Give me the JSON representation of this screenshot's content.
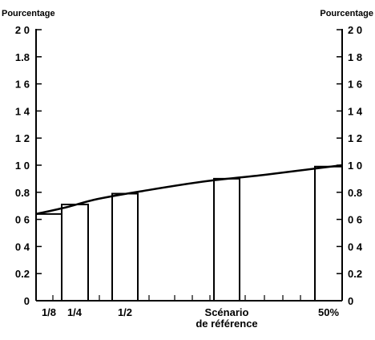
{
  "chart_data": {
    "type": "bar",
    "left_axis_title": "Pourcentage",
    "right_axis_title": "Pourcentage",
    "ylim": [
      0,
      2.0
    ],
    "y_ticks": [
      {
        "value": 0,
        "label": "0"
      },
      {
        "value": 0.2,
        "label": "0.2"
      },
      {
        "value": 0.4,
        "label": "0 4"
      },
      {
        "value": 0.6,
        "label": "0 6"
      },
      {
        "value": 0.8,
        "label": "0.8"
      },
      {
        "value": 1.0,
        "label": "1 0"
      },
      {
        "value": 1.2,
        "label": "1 2"
      },
      {
        "value": 1.4,
        "label": "1 4"
      },
      {
        "value": 1.6,
        "label": "1 6"
      },
      {
        "value": 1.8,
        "label": "1.8"
      },
      {
        "value": 2.0,
        "label": "2 0"
      }
    ],
    "y_ticks_right": [
      {
        "value": 0,
        "label": "0"
      },
      {
        "value": 0.2,
        "label": "0.2"
      },
      {
        "value": 0.4,
        "label": "0 4"
      },
      {
        "value": 0.6,
        "label": "0 6"
      },
      {
        "value": 0.8,
        "label": "0.8"
      },
      {
        "value": 1.0,
        "label": "1 0"
      },
      {
        "value": 1.2,
        "label": "1 2"
      },
      {
        "value": 1.4,
        "label": "1 4"
      },
      {
        "value": 1.6,
        "label": "1 6"
      },
      {
        "value": 1.8,
        "label": "1 8"
      },
      {
        "value": 2.0,
        "label": "2 0"
      }
    ],
    "categories": [
      "1/8",
      "1/4",
      "1/2",
      "Scénario de référence",
      "50%"
    ],
    "category_label_lines": [
      [
        "1/8"
      ],
      [
        "1/4"
      ],
      [
        "1/2"
      ],
      [
        "Scénario",
        "de référence"
      ],
      [
        "50%"
      ]
    ],
    "values": [
      0.64,
      0.71,
      0.79,
      0.9,
      0.99
    ],
    "curve": {
      "x": [
        0,
        0.1,
        0.2,
        0.35,
        0.55,
        0.75,
        1.0
      ],
      "y": [
        0.64,
        0.69,
        0.75,
        0.81,
        0.88,
        0.93,
        1.0
      ]
    },
    "grid": false,
    "legend": "none"
  }
}
